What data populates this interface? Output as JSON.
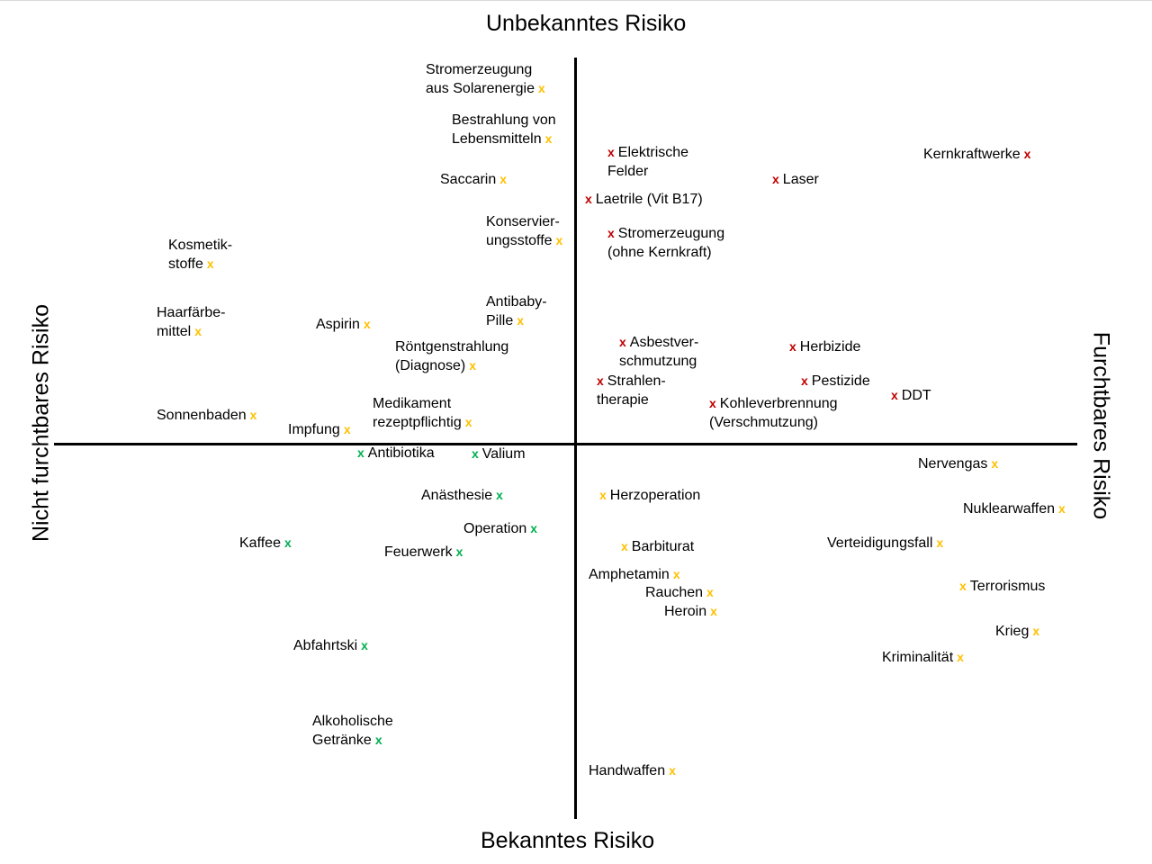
{
  "axes": {
    "top": "Unbekanntes Risiko",
    "bottom": "Bekanntes Risiko",
    "left": "Nicht furchtbares Risiko",
    "right": "Furchtbares Risiko"
  },
  "marker": "x",
  "colors": {
    "red": "#c00000",
    "yellow": "#ffc000",
    "green": "#00b050"
  },
  "items": [
    {
      "text": "Stromerzeugung\naus Solarenergie",
      "color": "yellow",
      "side": "after"
    },
    {
      "text": "Bestrahlung von\nLebensmitteln",
      "color": "yellow",
      "side": "after"
    },
    {
      "text": "Saccarin",
      "color": "yellow",
      "side": "after"
    },
    {
      "text": "Konservier-\nungsstoffe",
      "color": "yellow",
      "side": "after"
    },
    {
      "text": "Kosmetik-\nstoffe",
      "color": "yellow",
      "side": "after"
    },
    {
      "text": "Haarfärbe-\nmittel",
      "color": "yellow",
      "side": "after"
    },
    {
      "text": "Aspirin",
      "color": "yellow",
      "side": "after"
    },
    {
      "text": "Antibaby-\nPille",
      "color": "yellow",
      "side": "after"
    },
    {
      "text": "Röntgenstrahlung\n(Diagnose)",
      "color": "yellow",
      "side": "after"
    },
    {
      "text": "Medikament\nrezeptpflichtig",
      "color": "yellow",
      "side": "after"
    },
    {
      "text": "Sonnenbaden",
      "color": "yellow",
      "side": "after"
    },
    {
      "text": "Impfung",
      "color": "yellow",
      "side": "after"
    },
    {
      "text": "Elektrische\nFelder",
      "color": "red",
      "side": "before"
    },
    {
      "text": "Laser",
      "color": "red",
      "side": "before"
    },
    {
      "text": "Kernkraftwerke",
      "color": "red",
      "side": "after"
    },
    {
      "text": "Laetrile (Vit B17)",
      "color": "red",
      "side": "before"
    },
    {
      "text": "Stromerzeugung\n(ohne Kernkraft)",
      "color": "red",
      "side": "before"
    },
    {
      "text": "Asbestver-\nschmutzung",
      "color": "red",
      "side": "before"
    },
    {
      "text": "Herbizide",
      "color": "red",
      "side": "before"
    },
    {
      "text": "Strahlen-\ntherapie",
      "color": "red",
      "side": "before"
    },
    {
      "text": "Pestizide",
      "color": "red",
      "side": "before"
    },
    {
      "text": "DDT",
      "color": "red",
      "side": "before"
    },
    {
      "text": "Kohleverbrennung\n(Verschmutzung)",
      "color": "red",
      "side": "before"
    },
    {
      "text": "Antibiotika",
      "color": "green",
      "side": "before"
    },
    {
      "text": "Valium",
      "color": "green",
      "side": "before"
    },
    {
      "text": "Anästhesie",
      "color": "green",
      "side": "after"
    },
    {
      "text": "Operation",
      "color": "green",
      "side": "after"
    },
    {
      "text": "Kaffee",
      "color": "green",
      "side": "after"
    },
    {
      "text": "Feuerwerk",
      "color": "green",
      "side": "after"
    },
    {
      "text": "Abfahrtski",
      "color": "green",
      "side": "after"
    },
    {
      "text": "Alkoholische\nGetränke",
      "color": "green",
      "side": "after"
    },
    {
      "text": "Nervengas",
      "color": "yellow",
      "side": "after"
    },
    {
      "text": "Herzoperation",
      "color": "yellow",
      "side": "before"
    },
    {
      "text": "Nuklearwaffen",
      "color": "yellow",
      "side": "after"
    },
    {
      "text": "Barbiturat",
      "color": "yellow",
      "side": "before"
    },
    {
      "text": "Verteidigungsfall",
      "color": "yellow",
      "side": "after"
    },
    {
      "text": "Amphetamin",
      "color": "yellow",
      "side": "after"
    },
    {
      "text": "Rauchen",
      "color": "yellow",
      "side": "after"
    },
    {
      "text": "Heroin",
      "color": "yellow",
      "side": "after"
    },
    {
      "text": "Terrorismus",
      "color": "yellow",
      "side": "before"
    },
    {
      "text": "Krieg",
      "color": "yellow",
      "side": "after"
    },
    {
      "text": "Kriminalität",
      "color": "yellow",
      "side": "after"
    },
    {
      "text": "Handwaffen",
      "color": "yellow",
      "side": "after"
    }
  ]
}
